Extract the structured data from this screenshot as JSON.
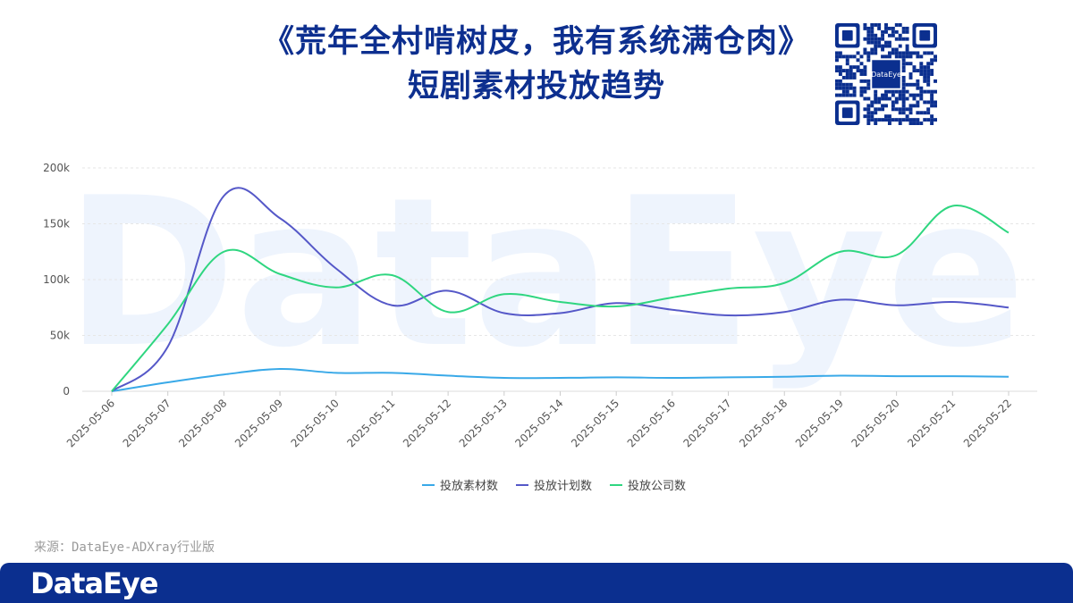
{
  "header": {
    "title_line1": "《荒年全村啃树皮，我有系统满仓肉》",
    "title_line2": "短剧素材投放趋势",
    "qr_label": "DataEye"
  },
  "watermark": "DataEye",
  "source_note": "来源：DataEye-ADXray行业版",
  "footer": {
    "brand": "DataEye"
  },
  "colors": {
    "title": "#0d2f8f",
    "footer_bg": "#0b2f8f",
    "series_1": "#39a9e8",
    "series_2": "#5558c8",
    "series_3": "#2fd680",
    "watermark": "#eef4fd"
  },
  "chart_data": {
    "type": "line",
    "x": [
      "2025-05-06",
      "2025-05-07",
      "2025-05-08",
      "2025-05-09",
      "2025-05-10",
      "2025-05-11",
      "2025-05-12",
      "2025-05-13",
      "2025-05-14",
      "2025-05-15",
      "2025-05-16",
      "2025-05-17",
      "2025-05-18",
      "2025-05-19",
      "2025-05-20",
      "2025-05-21",
      "2025-05-22"
    ],
    "y_ticks": [
      "0",
      "50k",
      "100k",
      "150k",
      "200k"
    ],
    "ylim": [
      0,
      200000
    ],
    "grid": true,
    "legend_position": "bottom",
    "series": [
      {
        "name": "投放素材数",
        "color": "#39a9e8",
        "values": [
          0,
          8000,
          15000,
          20000,
          16500,
          16500,
          14000,
          12000,
          12000,
          12500,
          12000,
          12500,
          13000,
          14000,
          13500,
          13500,
          13000
        ]
      },
      {
        "name": "投放计划数",
        "color": "#5558c8",
        "values": [
          0,
          40000,
          175000,
          155000,
          110000,
          77000,
          90000,
          70000,
          70000,
          79000,
          73000,
          68000,
          71000,
          82000,
          77000,
          80000,
          75000
        ]
      },
      {
        "name": "投放公司数",
        "color": "#2fd680",
        "values": [
          0,
          60000,
          125000,
          105000,
          93000,
          104000,
          71000,
          87000,
          80000,
          76000,
          84000,
          92000,
          97000,
          125000,
          122000,
          166000,
          142000
        ]
      }
    ]
  }
}
